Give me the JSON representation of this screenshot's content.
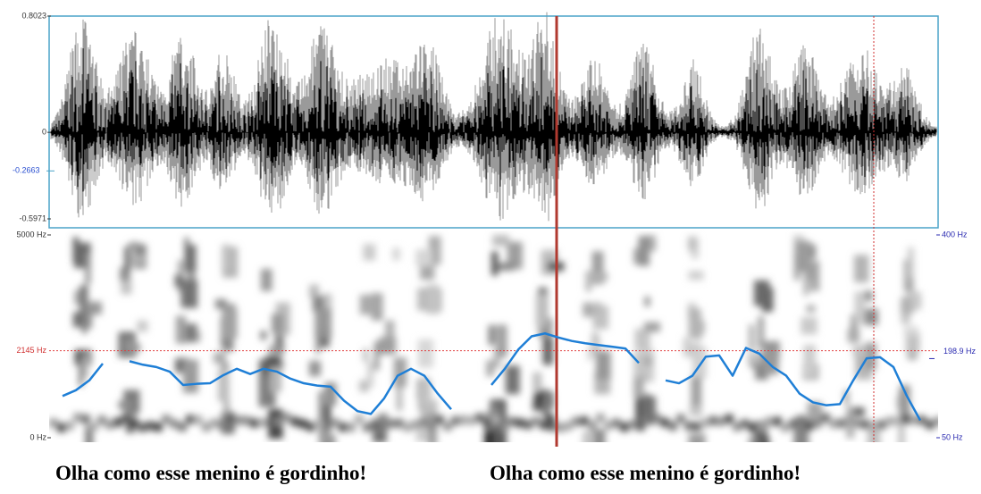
{
  "waveform": {
    "ylim": [
      -0.5971,
      0.8023
    ],
    "yticks": [
      {
        "value": 0.8023,
        "label": "0.8023"
      },
      0,
      {
        "value": -0.5971,
        "label": "-0.5971"
      }
    ],
    "cursor": {
      "value": -0.2663,
      "label": "-0.2663"
    }
  },
  "spectrogram": {
    "ylim": [
      0,
      5000
    ],
    "yticks": [
      {
        "value": 5000,
        "label": "5000 Hz"
      },
      {
        "value": 0,
        "label": "0 Hz"
      }
    ],
    "cursor": {
      "value": 2145,
      "label": "2145 Hz"
    }
  },
  "pitch": {
    "type": "line",
    "color": "#1f7fd6",
    "ylim": [
      50,
      400
    ],
    "yticks": [
      {
        "value": 400,
        "label": "400 Hz"
      },
      {
        "value": 50,
        "label": "50 Hz"
      }
    ],
    "cursor": {
      "value": 198.9,
      "label": "198.9 Hz"
    },
    "values": [
      122,
      132,
      149,
      178,
      null,
      182,
      176,
      172,
      164,
      141,
      143,
      144,
      158,
      169,
      160,
      169,
      164,
      152,
      144,
      140,
      138,
      114,
      96,
      91,
      118,
      157,
      169,
      157,
      126,
      99,
      null,
      null,
      141,
      169,
      202,
      225,
      230,
      223,
      217,
      213,
      210,
      207,
      204,
      179,
      null,
      149,
      144,
      157,
      190,
      192,
      157,
      205,
      195,
      172,
      157,
      126,
      111,
      106,
      108,
      149,
      187,
      189,
      172,
      122,
      80
    ]
  },
  "captions": [
    "Olha como esse menino é gordinho!",
    "Olha como esse menino é gordinho!"
  ]
}
